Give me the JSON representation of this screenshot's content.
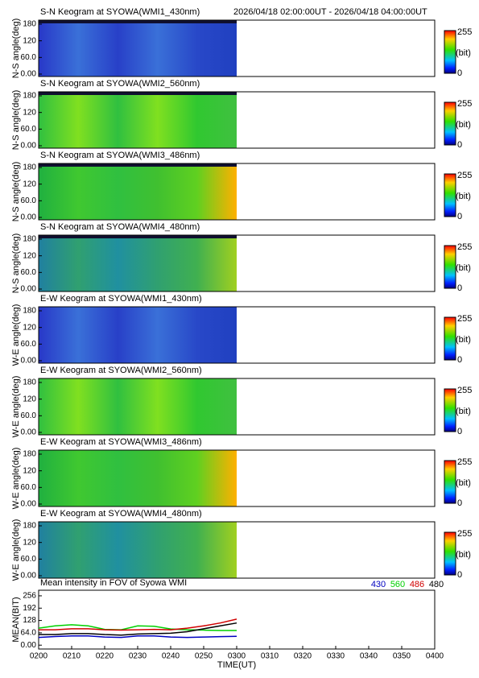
{
  "header": {
    "time_range": "2026/04/18 02:00:00UT - 2026/04/18 04:00:00UT"
  },
  "keograms": {
    "yticks": [
      {
        "value": 180,
        "label": "180"
      },
      {
        "value": 120,
        "label": "120"
      },
      {
        "value": 60,
        "label": "60.0"
      },
      {
        "value": 0,
        "label": "0.00"
      }
    ],
    "colorbar": {
      "max": "255",
      "unit": "(bit)",
      "min": "0"
    },
    "panels": [
      {
        "title": "S-N Keogram at SYOWA(WMI1_430nm)",
        "ylabel": "N-S angle(deg)"
      },
      {
        "title": "S-N Keogram at SYOWA(WMI2_560nm)",
        "ylabel": "N-S angle(deg)"
      },
      {
        "title": "S-N Keogram at SYOWA(WMI3_486nm)",
        "ylabel": "N-S angle(deg)"
      },
      {
        "title": "S-N Keogram at SYOWA(WMI4_480nm)",
        "ylabel": "N-S angle(deg)"
      },
      {
        "title": "E-W Keogram at SYOWA(WMI1_430nm)",
        "ylabel": "W-E angle(deg)"
      },
      {
        "title": "E-W Keogram at SYOWA(WMI2_560nm)",
        "ylabel": "W-E angle(deg)"
      },
      {
        "title": "E-W Keogram at SYOWA(WMI3_486nm)",
        "ylabel": "W-E angle(deg)"
      },
      {
        "title": "E-W Keogram at SYOWA(WMI4_480nm)",
        "ylabel": "W-E angle(deg)"
      }
    ]
  },
  "chart_data": {
    "type": "line",
    "title": "Mean intensity in FOV of Syowa WMI",
    "y_label": "MEAN(BIT)",
    "x_label": "TIME(UT)",
    "x": [
      120,
      125,
      130,
      135,
      140,
      145,
      150,
      155,
      160,
      165,
      170,
      175,
      180
    ],
    "series": [
      {
        "name": "430",
        "color": "#0000c0",
        "values": [
          40,
          45,
          48,
          48,
          42,
          40,
          48,
          48,
          42,
          40,
          42,
          44,
          46
        ]
      },
      {
        "name": "560",
        "color": "#00d000",
        "values": [
          88,
          100,
          106,
          100,
          82,
          80,
          100,
          98,
          84,
          80,
          78,
          76,
          76
        ]
      },
      {
        "name": "486",
        "color": "#d00000",
        "values": [
          80,
          80,
          85,
          85,
          80,
          78,
          80,
          82,
          80,
          88,
          100,
          115,
          135
        ]
      },
      {
        "name": "480",
        "color": "#000000",
        "values": [
          55,
          55,
          60,
          60,
          55,
          52,
          58,
          60,
          62,
          70,
          85,
          100,
          115
        ]
      }
    ],
    "xlim": [
      120,
      240
    ],
    "xticks": [
      {
        "value": 120,
        "label": "0200"
      },
      {
        "value": 130,
        "label": "0210"
      },
      {
        "value": 140,
        "label": "0220"
      },
      {
        "value": 150,
        "label": "0230"
      },
      {
        "value": 160,
        "label": "0240"
      },
      {
        "value": 170,
        "label": "0250"
      },
      {
        "value": 180,
        "label": "0300"
      },
      {
        "value": 190,
        "label": "0310"
      },
      {
        "value": 200,
        "label": "0320"
      },
      {
        "value": 210,
        "label": "0330"
      },
      {
        "value": 220,
        "label": "0340"
      },
      {
        "value": 230,
        "label": "0350"
      },
      {
        "value": 240,
        "label": "0400"
      }
    ],
    "ylim": [
      -20,
      285
    ],
    "yticks": [
      256,
      192,
      128,
      {
        "value": 64,
        "label": "64.0"
      },
      {
        "value": 0,
        "label": "0.00"
      }
    ]
  }
}
